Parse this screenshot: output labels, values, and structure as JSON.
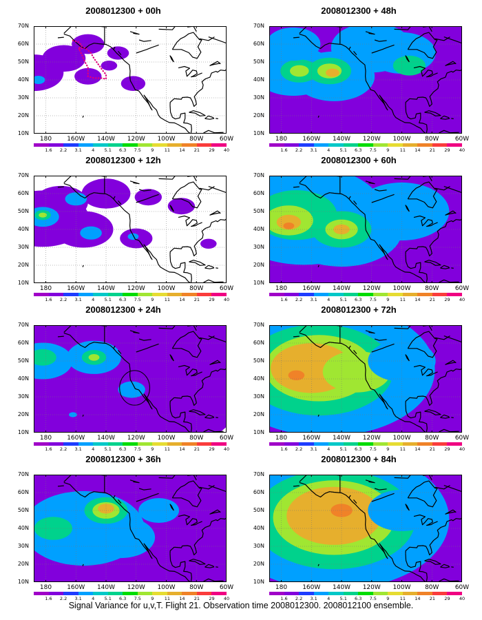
{
  "panels": [
    {
      "title": "2008012300 + 00h",
      "blobs": [
        {
          "x": 172,
          "y": 44,
          "r": 22,
          "l": 1
        },
        {
          "x": -168,
          "y": 52,
          "r": 16,
          "l": 1
        },
        {
          "x": -152,
          "y": 42,
          "r": 10,
          "l": 1
        },
        {
          "x": -152,
          "y": 60,
          "r": 12,
          "l": 1
        },
        {
          "x": -122,
          "y": 38,
          "r": 9,
          "l": 1
        },
        {
          "x": -132,
          "y": 55,
          "r": 8,
          "l": 1
        },
        {
          "x": -138,
          "y": 48,
          "r": 6,
          "l": 1
        },
        {
          "x": 175,
          "y": 40,
          "r": 5,
          "l": 3
        }
      ],
      "ring": null
    },
    {
      "title": "2008012300 + 48h",
      "blobs": [
        {
          "x": -150,
          "y": 42,
          "r": 130,
          "l": 1
        },
        {
          "x": -95,
          "y": 45,
          "r": 70,
          "l": 1
        },
        {
          "x": -172,
          "y": 45,
          "r": 30,
          "l": 3
        },
        {
          "x": -145,
          "y": 42,
          "r": 30,
          "l": 3
        },
        {
          "x": -100,
          "y": 55,
          "r": 25,
          "l": 3
        },
        {
          "x": -120,
          "y": 58,
          "r": 30,
          "l": 3
        },
        {
          "x": -168,
          "y": 45,
          "r": 14,
          "l": 5
        },
        {
          "x": -148,
          "y": 45,
          "r": 16,
          "l": 5
        },
        {
          "x": -168,
          "y": 45,
          "r": 7,
          "l": 7
        },
        {
          "x": -148,
          "y": 45,
          "r": 9,
          "l": 7
        },
        {
          "x": -146,
          "y": 44,
          "r": 5,
          "l": 9
        },
        {
          "x": -95,
          "y": 48,
          "r": 12,
          "l": 5
        },
        {
          "x": -172,
          "y": 60,
          "r": 20,
          "l": 3
        }
      ],
      "ring": null
    },
    {
      "title": "2008012300 + 12h",
      "blobs": [
        {
          "x": 178,
          "y": 46,
          "r": 34,
          "l": 1
        },
        {
          "x": -170,
          "y": 55,
          "r": 20,
          "l": 1
        },
        {
          "x": -155,
          "y": 40,
          "r": 22,
          "l": 1
        },
        {
          "x": -140,
          "y": 60,
          "r": 18,
          "l": 1
        },
        {
          "x": -120,
          "y": 35,
          "r": 12,
          "l": 1
        },
        {
          "x": -90,
          "y": 53,
          "r": 10,
          "l": 1
        },
        {
          "x": -72,
          "y": 32,
          "r": 6,
          "l": 1
        },
        {
          "x": -112,
          "y": 58,
          "r": 10,
          "l": 1
        },
        {
          "x": 178,
          "y": 47,
          "r": 12,
          "l": 3
        },
        {
          "x": 178,
          "y": 48,
          "r": 6,
          "l": 5
        },
        {
          "x": 178,
          "y": 48,
          "r": 3,
          "l": 7
        },
        {
          "x": -160,
          "y": 57,
          "r": 8,
          "l": 3
        },
        {
          "x": -150,
          "y": 38,
          "r": 8,
          "l": 3
        },
        {
          "x": -122,
          "y": 36,
          "r": 4,
          "l": 3
        }
      ],
      "ring": null
    },
    {
      "title": "2008012300 + 60h",
      "blobs": [
        {
          "x": -145,
          "y": 43,
          "r": 150,
          "l": 1
        },
        {
          "x": -90,
          "y": 45,
          "r": 80,
          "l": 1
        },
        {
          "x": -165,
          "y": 48,
          "r": 60,
          "l": 3
        },
        {
          "x": -140,
          "y": 40,
          "r": 45,
          "l": 3
        },
        {
          "x": -100,
          "y": 50,
          "r": 35,
          "l": 3
        },
        {
          "x": -170,
          "y": 48,
          "r": 30,
          "l": 5
        },
        {
          "x": -140,
          "y": 40,
          "r": 22,
          "l": 5
        },
        {
          "x": -175,
          "y": 45,
          "r": 18,
          "l": 7
        },
        {
          "x": -140,
          "y": 40,
          "r": 12,
          "l": 7
        },
        {
          "x": -175,
          "y": 44,
          "r": 9,
          "l": 9
        },
        {
          "x": -140,
          "y": 40,
          "r": 6,
          "l": 9
        },
        {
          "x": -175,
          "y": 42,
          "r": 4,
          "l": 10
        }
      ],
      "ring": null
    },
    {
      "title": "2008012300 + 24h",
      "blobs": [
        {
          "x": -150,
          "y": 44,
          "r": 120,
          "l": 1
        },
        {
          "x": -95,
          "y": 50,
          "r": 40,
          "l": 1
        },
        {
          "x": -70,
          "y": 40,
          "r": 12,
          "l": 1
        },
        {
          "x": 178,
          "y": 50,
          "r": 22,
          "l": 3
        },
        {
          "x": -148,
          "y": 52,
          "r": 20,
          "l": 3
        },
        {
          "x": -123,
          "y": 34,
          "r": 10,
          "l": 3
        },
        {
          "x": 178,
          "y": 52,
          "r": 10,
          "l": 5
        },
        {
          "x": -148,
          "y": 52,
          "r": 9,
          "l": 5
        },
        {
          "x": -148,
          "y": 52,
          "r": 4,
          "l": 7
        },
        {
          "x": -162,
          "y": 20,
          "r": 3,
          "l": 3
        }
      ],
      "ring": {
        "x": -121,
        "y": 35,
        "r": 10
      }
    },
    {
      "title": "2008012300 + 72h",
      "blobs": [
        {
          "x": -140,
          "y": 43,
          "r": 150,
          "l": 1
        },
        {
          "x": -95,
          "y": 45,
          "r": 70,
          "l": 1
        },
        {
          "x": -150,
          "y": 45,
          "r": 80,
          "l": 3
        },
        {
          "x": -155,
          "y": 45,
          "r": 55,
          "l": 5
        },
        {
          "x": -155,
          "y": 46,
          "r": 40,
          "l": 7
        },
        {
          "x": -160,
          "y": 46,
          "r": 30,
          "l": 9
        },
        {
          "x": -170,
          "y": 42,
          "r": 6,
          "l": 10
        },
        {
          "x": -130,
          "y": 44,
          "r": 25,
          "l": 7
        },
        {
          "x": -100,
          "y": 50,
          "r": 25,
          "l": 3
        }
      ],
      "ring": null
    },
    {
      "title": "2008012300 + 36h",
      "blobs": [
        {
          "x": -148,
          "y": 44,
          "r": 130,
          "l": 1
        },
        {
          "x": -100,
          "y": 45,
          "r": 60,
          "l": 1
        },
        {
          "x": -155,
          "y": 40,
          "r": 45,
          "l": 3
        },
        {
          "x": -130,
          "y": 35,
          "r": 25,
          "l": 3
        },
        {
          "x": -140,
          "y": 50,
          "r": 16,
          "l": 5
        },
        {
          "x": -140,
          "y": 50,
          "r": 10,
          "l": 7
        },
        {
          "x": -140,
          "y": 51,
          "r": 6,
          "l": 9
        },
        {
          "x": -175,
          "y": 40,
          "r": 14,
          "l": 5
        },
        {
          "x": -105,
          "y": 50,
          "r": 15,
          "l": 3
        }
      ],
      "ring": null
    },
    {
      "title": "2008012300 + 84h",
      "blobs": [
        {
          "x": -140,
          "y": 43,
          "r": 150,
          "l": 1
        },
        {
          "x": -95,
          "y": 45,
          "r": 70,
          "l": 1
        },
        {
          "x": -145,
          "y": 45,
          "r": 85,
          "l": 3
        },
        {
          "x": -145,
          "y": 45,
          "r": 60,
          "l": 5
        },
        {
          "x": -145,
          "y": 46,
          "r": 45,
          "l": 7
        },
        {
          "x": -145,
          "y": 47,
          "r": 35,
          "l": 9
        },
        {
          "x": -140,
          "y": 50,
          "r": 8,
          "l": 10
        },
        {
          "x": -100,
          "y": 50,
          "r": 25,
          "l": 3
        }
      ],
      "ring": null
    }
  ],
  "lat_labels": [
    "70N",
    "60N",
    "50N",
    "40N",
    "30N",
    "20N",
    "10N"
  ],
  "lon_labels": [
    "180",
    "160W",
    "140W",
    "120W",
    "100W",
    "80W",
    "60W"
  ],
  "colorbar_labels": [
    "1.6",
    "2.2",
    "3.1",
    "4",
    "5.1",
    "6.3",
    "7.5",
    "9",
    "11",
    "14",
    "21",
    "29",
    "40"
  ],
  "colorbar_colors": [
    "#a000c8",
    "#8200dc",
    "#1e3cff",
    "#00a0ff",
    "#00c8c8",
    "#00d28c",
    "#00dc00",
    "#a0e632",
    "#e6dc32",
    "#e6af2d",
    "#f08228",
    "#fa3c3c",
    "#f00082"
  ],
  "caption": "Signal Variance for u,v,T. Flight 21. Observation time 2008012300. 2008012100 ensemble."
}
